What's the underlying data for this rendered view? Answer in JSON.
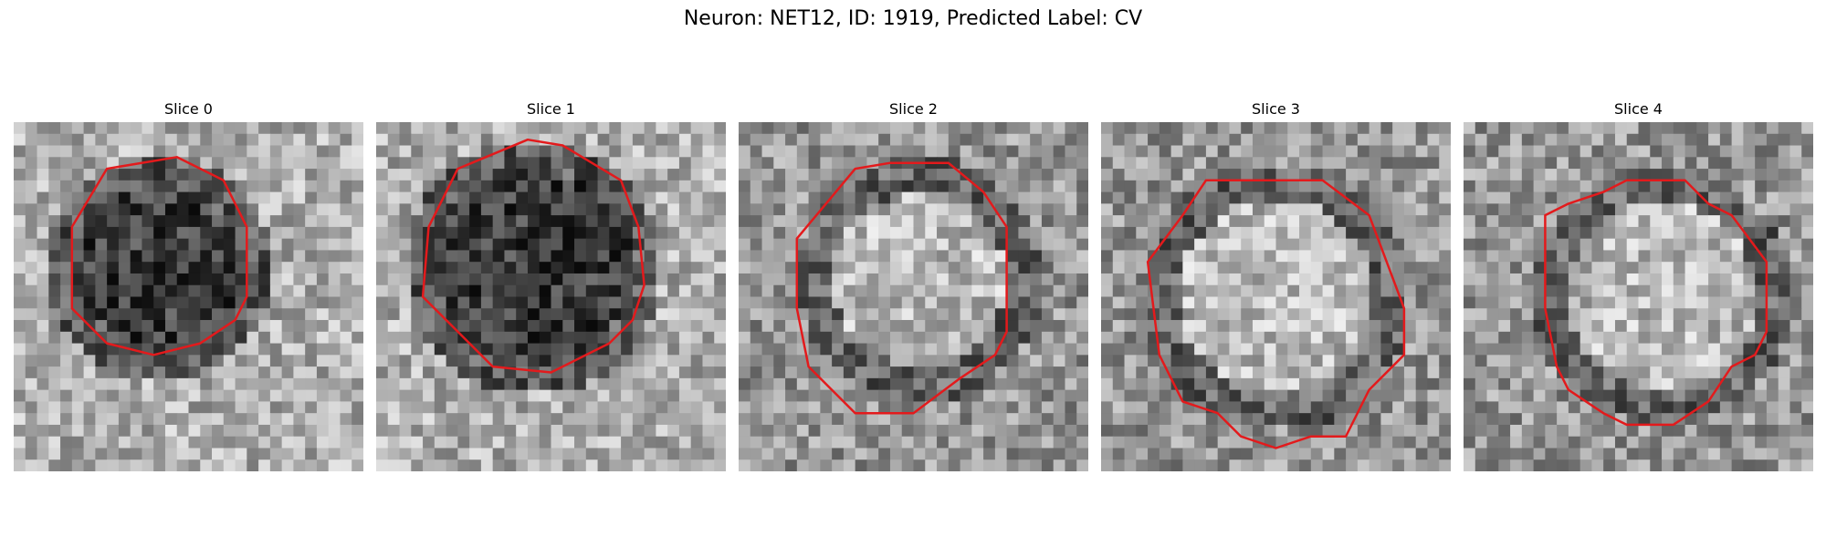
{
  "figure": {
    "title": "Neuron: NET12, ID: 1919, Predicted Label: CV"
  },
  "panels": [
    {
      "title": "Slice 0",
      "image": "grayscale-em-slice-dark-vesicle",
      "contour": "red-outline-polygon"
    },
    {
      "title": "Slice 1",
      "image": "grayscale-em-slice-dark-vesicle",
      "contour": "red-outline-polygon"
    },
    {
      "title": "Slice 2",
      "image": "grayscale-em-slice-light-vesicle",
      "contour": "red-outline-polygon"
    },
    {
      "title": "Slice 3",
      "image": "grayscale-em-slice-light-vesicle",
      "contour": "red-outline-polygon"
    },
    {
      "title": "Slice 4",
      "image": "grayscale-em-slice-light-vesicle",
      "contour": "red-outline-polygon"
    }
  ],
  "colors": {
    "contour": "#e31a1c"
  }
}
